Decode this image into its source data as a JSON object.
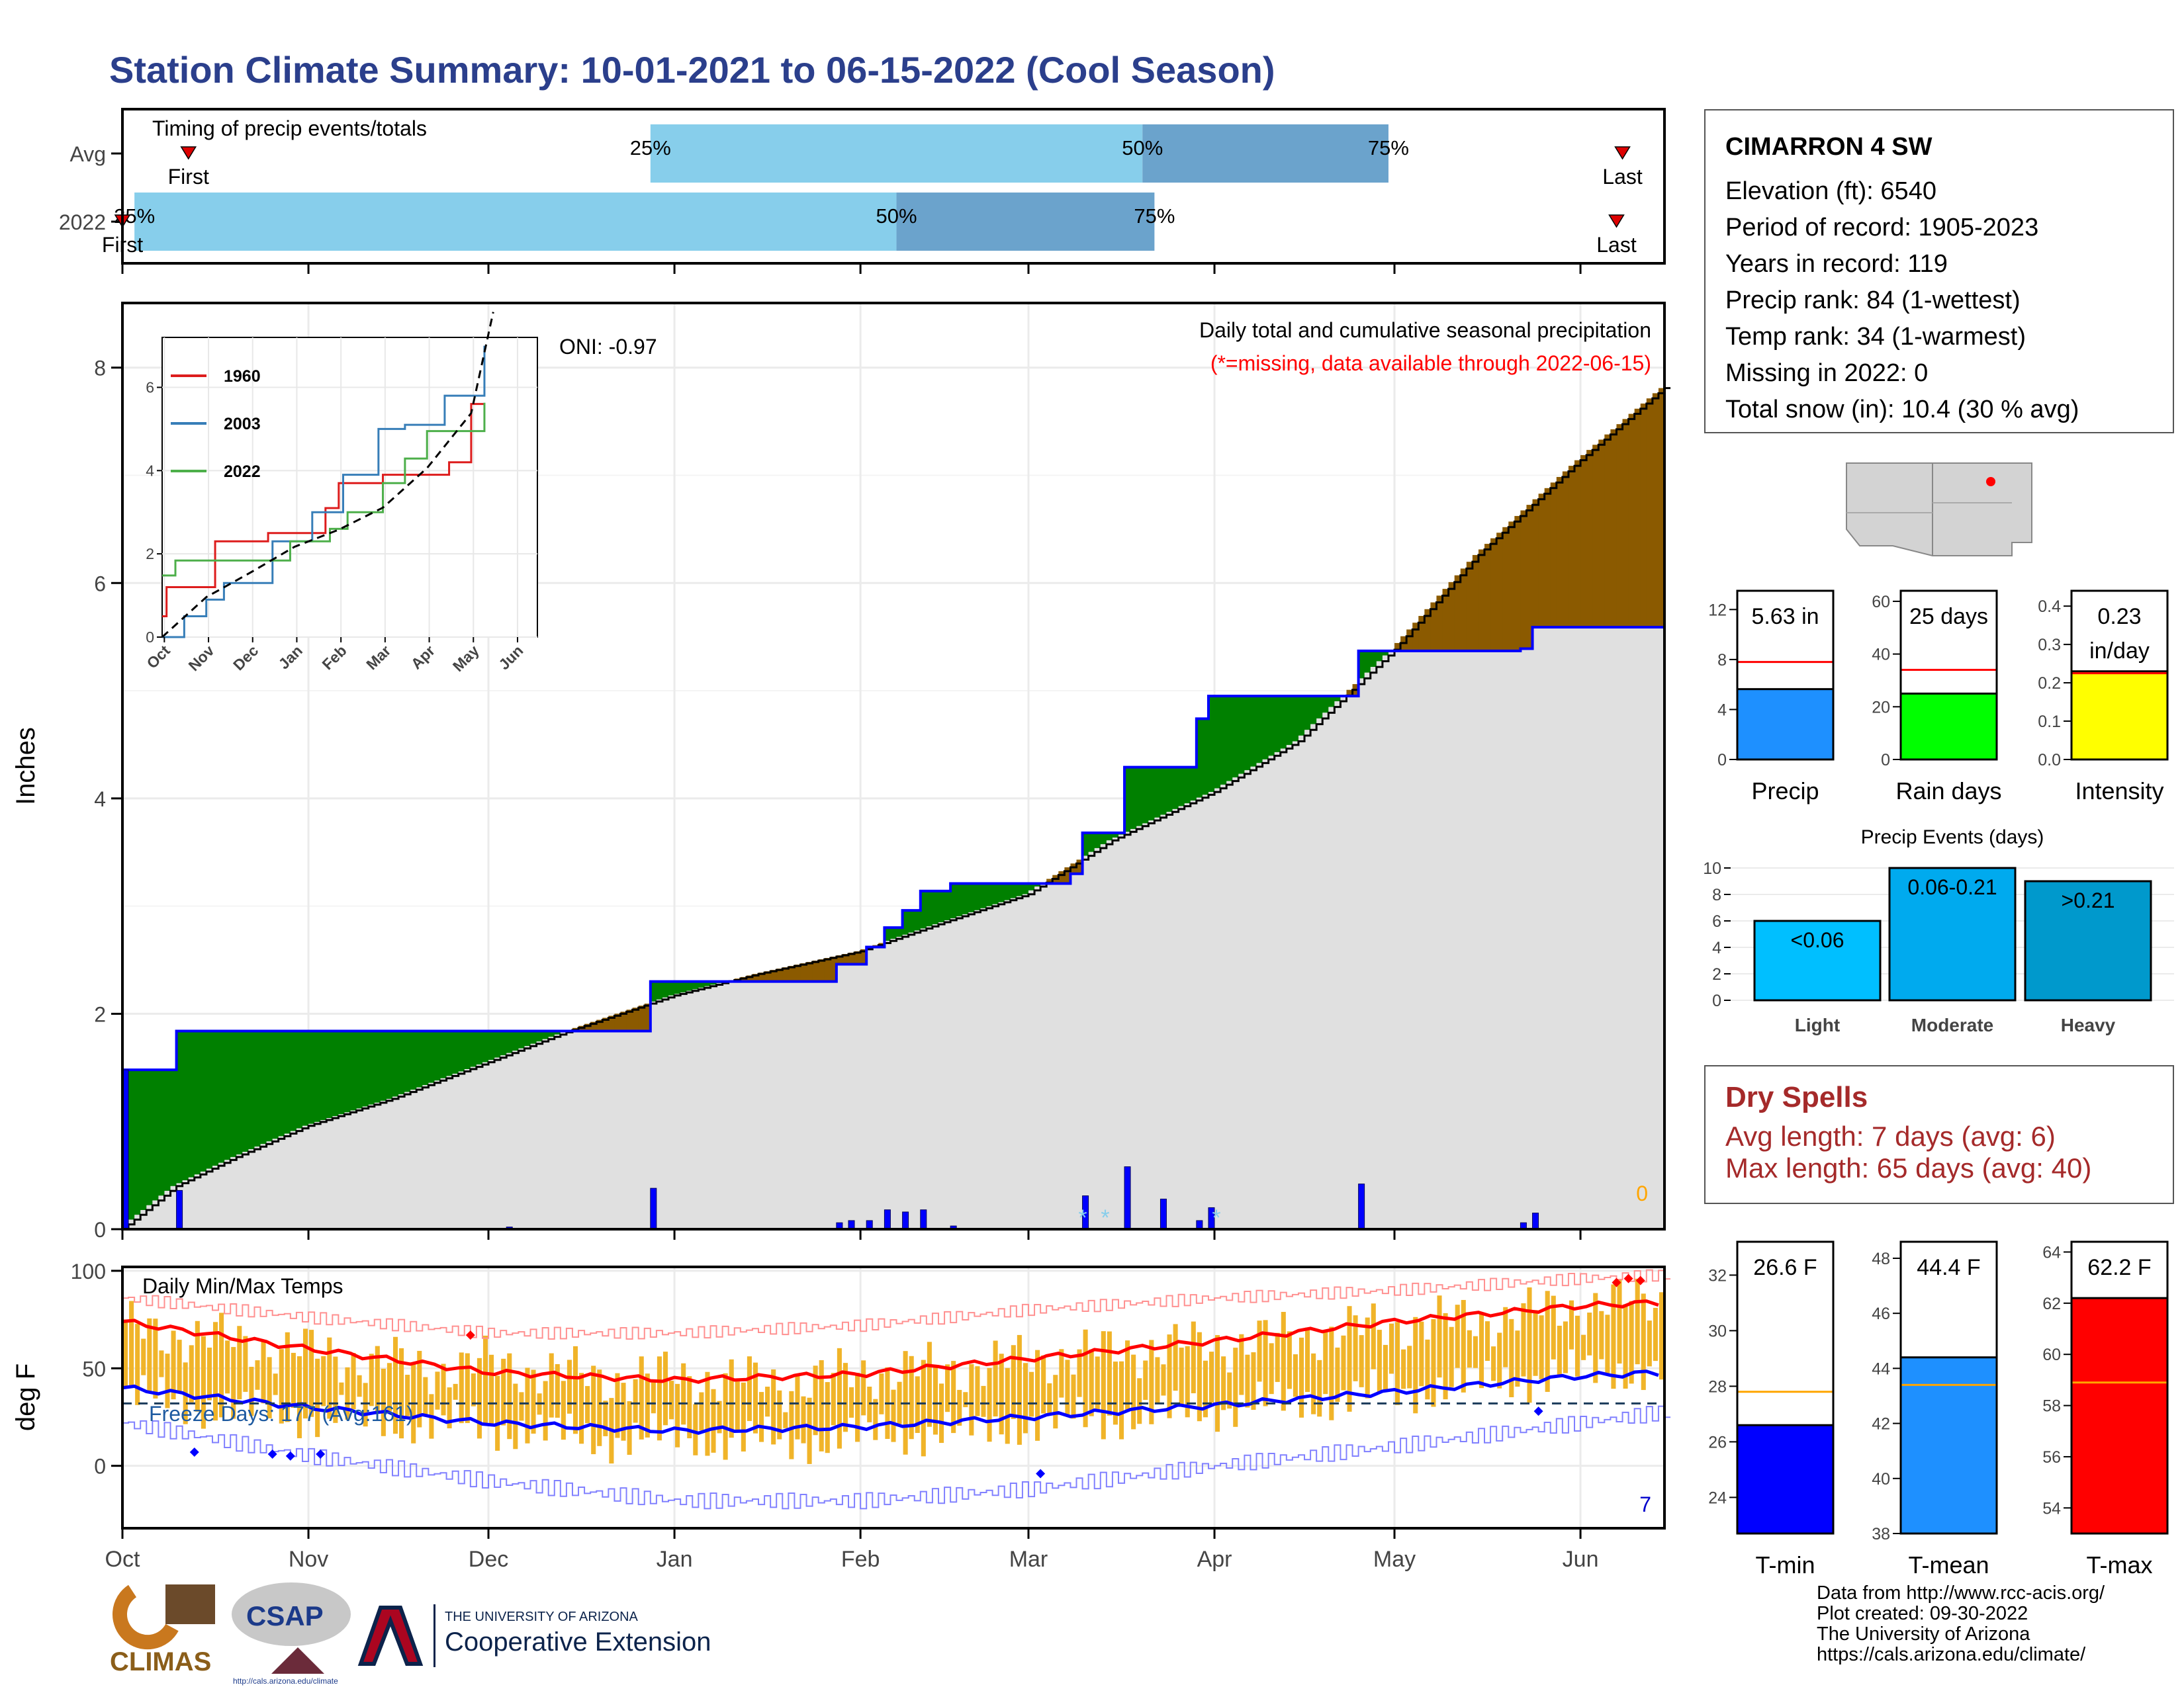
{
  "title": "Station Climate Summary: 10-01-2021 to 06-15-2022 (Cool Season)",
  "station": {
    "name": "CIMARRON 4 SW",
    "lines": [
      "Elevation (ft): 6540",
      "Period of record: 1905-2023",
      "Years in record: 119",
      "Precip rank: 84 (1-wettest)",
      "Temp rank: 34 (1-warmest)",
      "Missing in 2022: 0",
      "Total snow (in): 10.4 (30 % avg)"
    ]
  },
  "colors": {
    "title": "#2b3f8c",
    "above_avg": "#008000",
    "below_avg": "#8b5a00",
    "normal_fill": "#e0e0e0",
    "precip_line": "#0000ff",
    "bars": "#f0b429",
    "tmax": "#ff0000",
    "tmin": "#0000ff",
    "missing_text": "#ff0000",
    "dry_spells": "#a52a2a"
  },
  "chart_data": [
    {
      "id": "timing",
      "type": "bar",
      "title": "Timing of precip events/totals",
      "rows": [
        {
          "label": "Avg",
          "first": "2021-10-12",
          "p25": "2021-12-28",
          "p50": "2022-03-20",
          "p75": "2022-04-30",
          "last": "2022-06-08",
          "first_label": "First",
          "p25_label": "25%",
          "p50_label": "50%",
          "p75_label": "75%",
          "last_label": "Last"
        },
        {
          "label": "2022",
          "first": "2021-10-01",
          "p25": "2021-10-03",
          "p50": "2022-02-07",
          "p75": "2022-03-22",
          "last": "2022-06-07",
          "first_label": "First",
          "p25_label": "25%",
          "p50_label": "50%",
          "p75_label": "75%",
          "last_label": "Last"
        }
      ]
    },
    {
      "id": "precip",
      "type": "area",
      "title": "Daily total and cumulative seasonal precipitation",
      "subtitle": "(*=missing, data available through 2022-06-15)",
      "oni": "ONI: -0.97",
      "ylabel": "Inches",
      "ylim": [
        0,
        8.6
      ],
      "yticks": [
        0,
        2,
        4,
        6,
        8
      ],
      "x_range": [
        "2021-10-01",
        "2022-06-15"
      ],
      "x_ticks": [
        "Oct",
        "Nov",
        "Dec",
        "Jan",
        "Feb",
        "Mar",
        "Apr",
        "May",
        "Jun"
      ],
      "x_tick_dates": [
        "2021-10-01",
        "2021-11-01",
        "2021-12-01",
        "2022-01-01",
        "2022-02-01",
        "2022-03-01",
        "2022-04-01",
        "2022-05-01",
        "2022-06-01"
      ],
      "missing_count": "0",
      "cumulative_2022": [
        [
          "2021-10-01",
          1.48
        ],
        [
          "2021-10-10",
          1.84
        ],
        [
          "2021-12-04",
          1.84
        ],
        [
          "2021-12-28",
          2.3
        ],
        [
          "2022-01-28",
          2.46
        ],
        [
          "2022-02-02",
          2.62
        ],
        [
          "2022-02-05",
          2.8
        ],
        [
          "2022-02-08",
          2.96
        ],
        [
          "2022-02-11",
          3.14
        ],
        [
          "2022-02-16",
          3.21
        ],
        [
          "2022-03-08",
          3.3
        ],
        [
          "2022-03-10",
          3.68
        ],
        [
          "2022-03-17",
          4.29
        ],
        [
          "2022-03-29",
          4.74
        ],
        [
          "2022-03-31",
          4.95
        ],
        [
          "2022-04-25",
          5.37
        ],
        [
          "2022-05-22",
          5.39
        ],
        [
          "2022-05-24",
          5.59
        ],
        [
          "2022-06-15",
          5.63
        ]
      ],
      "cumulative_normal": [
        [
          "2021-10-01",
          0.0
        ],
        [
          "2021-10-10",
          0.4
        ],
        [
          "2021-10-20",
          0.67
        ],
        [
          "2021-11-01",
          0.96
        ],
        [
          "2021-11-15",
          1.21
        ],
        [
          "2021-12-01",
          1.55
        ],
        [
          "2021-12-15",
          1.85
        ],
        [
          "2022-01-01",
          2.17
        ],
        [
          "2022-01-15",
          2.37
        ],
        [
          "2022-02-01",
          2.58
        ],
        [
          "2022-02-15",
          2.85
        ],
        [
          "2022-03-01",
          3.11
        ],
        [
          "2022-03-15",
          3.61
        ],
        [
          "2022-04-01",
          4.06
        ],
        [
          "2022-04-15",
          4.53
        ],
        [
          "2022-05-01",
          5.38
        ],
        [
          "2022-05-15",
          6.26
        ],
        [
          "2022-06-01",
          7.14
        ],
        [
          "2022-06-15",
          7.81
        ]
      ],
      "daily_2022": [
        [
          "2021-10-01",
          1.48
        ],
        [
          "2021-10-10",
          0.36
        ],
        [
          "2021-12-04",
          0.02
        ],
        [
          "2021-12-28",
          0.38
        ],
        [
          "2022-01-28",
          0.06
        ],
        [
          "2022-01-30",
          0.08
        ],
        [
          "2022-02-02",
          0.08
        ],
        [
          "2022-02-05",
          0.18
        ],
        [
          "2022-02-08",
          0.16
        ],
        [
          "2022-02-11",
          0.18
        ],
        [
          "2022-02-16",
          0.03
        ],
        [
          "2022-03-10",
          0.31
        ],
        [
          "2022-03-17",
          0.58
        ],
        [
          "2022-03-23",
          0.28
        ],
        [
          "2022-03-29",
          0.08
        ],
        [
          "2022-03-31",
          0.2
        ],
        [
          "2022-04-25",
          0.42
        ],
        [
          "2022-05-22",
          0.06
        ],
        [
          "2022-05-24",
          0.15
        ]
      ],
      "snow_marks": [
        "*",
        "*",
        "*"
      ]
    },
    {
      "id": "inset",
      "type": "line",
      "ylim": [
        0,
        7.2
      ],
      "yticks": [
        0,
        2,
        4,
        6
      ],
      "x_ticks": [
        "Oct",
        "Nov",
        "Dec",
        "Jan",
        "Feb",
        "Mar",
        "Apr",
        "May",
        "Jun"
      ],
      "series": [
        {
          "name": "1960",
          "color": "#dd1c1c",
          "values": [
            [
              0,
              0.5
            ],
            [
              0.1,
              1.2
            ],
            [
              1.2,
              2.3
            ],
            [
              2.4,
              2.5
            ],
            [
              3.7,
              3.1
            ],
            [
              4.0,
              3.7
            ],
            [
              5.0,
              3.9
            ],
            [
              6.5,
              4.2
            ],
            [
              7.0,
              5.6
            ],
            [
              7.3,
              5.6
            ]
          ]
        },
        {
          "name": "2003",
          "color": "#377eb8",
          "values": [
            [
              0,
              0
            ],
            [
              0.5,
              0.5
            ],
            [
              1.0,
              0.9
            ],
            [
              1.4,
              1.3
            ],
            [
              2.5,
              2.3
            ],
            [
              3.4,
              3.0
            ],
            [
              4.1,
              3.9
            ],
            [
              4.9,
              5.0
            ],
            [
              5.5,
              5.1
            ],
            [
              6.4,
              5.8
            ],
            [
              7.3,
              7.0
            ]
          ]
        },
        {
          "name": "2022",
          "color": "#4daf4a",
          "values": [
            [
              0,
              1.48
            ],
            [
              0.3,
              1.84
            ],
            [
              2.1,
              1.84
            ],
            [
              2.9,
              2.3
            ],
            [
              3.8,
              2.6
            ],
            [
              4.2,
              3.0
            ],
            [
              5.0,
              3.7
            ],
            [
              5.5,
              4.29
            ],
            [
              6.0,
              4.95
            ],
            [
              7.3,
              5.63
            ]
          ]
        },
        {
          "name": "avg",
          "color": "#000000",
          "values": [
            [
              0,
              0
            ],
            [
              1.0,
              0.96
            ],
            [
              2.0,
              1.55
            ],
            [
              3.0,
              2.17
            ],
            [
              4.0,
              2.58
            ],
            [
              5.0,
              3.11
            ],
            [
              6.0,
              4.06
            ],
            [
              7.0,
              5.38
            ],
            [
              7.5,
              7.81
            ]
          ]
        }
      ]
    },
    {
      "id": "total_bars",
      "type": "bar",
      "panels": [
        {
          "name": "Precip",
          "value": 5.63,
          "label": "5.63 in",
          "label2": "",
          "avg": 7.8,
          "ylim": [
            0,
            13.5
          ],
          "yticks": [
            0,
            4,
            8,
            12
          ],
          "color": "#1e90ff"
        },
        {
          "name": "Rain days",
          "value": 25,
          "label": "25 days",
          "label2": "",
          "avg": 34,
          "ylim": [
            0,
            64
          ],
          "yticks": [
            0,
            20,
            40,
            60
          ],
          "color": "#00ff00"
        },
        {
          "name": "Intensity",
          "value": 0.23,
          "label": "0.23",
          "label2": "in/day",
          "avg": 0.225,
          "ylim": [
            0,
            0.44
          ],
          "yticks": [
            "0.0",
            "0.1",
            "0.2",
            "0.3",
            "0.4"
          ],
          "color": "#ffff00"
        }
      ]
    },
    {
      "id": "events",
      "type": "bar",
      "title": "Precip Events (days)",
      "categories": [
        "Light",
        "Moderate",
        "Heavy"
      ],
      "values": [
        6,
        10,
        9
      ],
      "labels": [
        "<0.06",
        "0.06-0.21",
        ">0.21"
      ],
      "colors": [
        "#00bfff",
        "#00aaee",
        "#0099cc"
      ],
      "ylim": [
        0,
        10.3
      ],
      "yticks": [
        0,
        2,
        4,
        6,
        8,
        10
      ]
    },
    {
      "id": "temps",
      "type": "bar",
      "title": "Daily Min/Max Temps",
      "ylabel": "deg F",
      "ylim": [
        -32,
        102
      ],
      "yticks": [
        0,
        50,
        100
      ],
      "freeze_label": "Freeze Days: 177 (Avg:161)",
      "freeze_line": 32,
      "missing_count": "7",
      "normal_max": [
        [
          0,
          74
        ],
        [
          31,
          60
        ],
        [
          61,
          48
        ],
        [
          92,
          44
        ],
        [
          123,
          47
        ],
        [
          151,
          55
        ],
        [
          182,
          64
        ],
        [
          212,
          74
        ],
        [
          243,
          82
        ],
        [
          258,
          84
        ]
      ],
      "normal_min": [
        [
          0,
          40
        ],
        [
          31,
          30
        ],
        [
          61,
          22
        ],
        [
          92,
          18
        ],
        [
          123,
          20
        ],
        [
          151,
          25
        ],
        [
          182,
          31
        ],
        [
          212,
          38
        ],
        [
          243,
          46
        ],
        [
          258,
          48
        ]
      ],
      "record_max": [
        [
          0,
          86
        ],
        [
          31,
          76
        ],
        [
          61,
          68
        ],
        [
          92,
          68
        ],
        [
          123,
          72
        ],
        [
          151,
          80
        ],
        [
          182,
          86
        ],
        [
          212,
          90
        ],
        [
          243,
          96
        ],
        [
          258,
          98
        ]
      ],
      "record_min": [
        [
          0,
          22
        ],
        [
          31,
          5
        ],
        [
          61,
          -8
        ],
        [
          92,
          -18
        ],
        [
          123,
          -18
        ],
        [
          151,
          -12
        ],
        [
          182,
          0
        ],
        [
          212,
          10
        ],
        [
          243,
          22
        ],
        [
          258,
          28
        ]
      ],
      "daily_max_avg": [
        [
          0,
          70
        ],
        [
          15,
          65
        ],
        [
          31,
          58
        ],
        [
          50,
          50
        ],
        [
          61,
          52
        ],
        [
          80,
          45
        ],
        [
          92,
          46
        ],
        [
          110,
          42
        ],
        [
          123,
          48
        ],
        [
          140,
          50
        ],
        [
          151,
          55
        ],
        [
          170,
          60
        ],
        [
          182,
          62
        ],
        [
          200,
          68
        ],
        [
          212,
          72
        ],
        [
          230,
          76
        ],
        [
          243,
          82
        ],
        [
          258,
          86
        ]
      ],
      "daily_min_avg": [
        [
          0,
          36
        ],
        [
          15,
          30
        ],
        [
          31,
          26
        ],
        [
          50,
          22
        ],
        [
          61,
          20
        ],
        [
          80,
          14
        ],
        [
          92,
          15
        ],
        [
          110,
          12
        ],
        [
          123,
          16
        ],
        [
          140,
          18
        ],
        [
          151,
          22
        ],
        [
          170,
          26
        ],
        [
          182,
          30
        ],
        [
          200,
          34
        ],
        [
          212,
          38
        ],
        [
          230,
          44
        ],
        [
          243,
          48
        ],
        [
          258,
          50
        ]
      ]
    },
    {
      "id": "temp_bars",
      "type": "bar",
      "panels": [
        {
          "name": "T-min",
          "value": 26.6,
          "label": "26.6 F",
          "avg": 27.8,
          "ylim": [
            22.7,
            33.2
          ],
          "yticks": [
            24,
            26,
            28,
            30,
            32
          ],
          "color": "#0000ff"
        },
        {
          "name": "T-mean",
          "value": 44.4,
          "label": "44.4 F",
          "avg": 43.4,
          "ylim": [
            38,
            48.6
          ],
          "yticks": [
            38,
            40,
            42,
            44,
            46,
            48
          ],
          "color": "#1e90ff"
        },
        {
          "name": "T-max",
          "value": 62.2,
          "label": "62.2 F",
          "avg": 58.9,
          "ylim": [
            53,
            64.4
          ],
          "yticks": [
            54,
            56,
            58,
            60,
            62,
            64
          ],
          "color": "#ff0000"
        }
      ]
    }
  ],
  "map": {
    "label": "station-location-map"
  },
  "dry_spells": {
    "title": "Dry Spells",
    "avg_line": "Avg length: 7 days (avg: 6)",
    "max_line": "Max length: 65 days (avg: 40)"
  },
  "credits": {
    "lines": [
      "Data from http://www.rcc-acis.org/",
      "Plot created: 09-30-2022",
      "The University of Arizona",
      "https://cals.arizona.edu/climate/"
    ]
  },
  "logos": {
    "climas": "CLIMAS",
    "csap": "CSAP",
    "csap_url": "http://cals.arizona.edu/climate",
    "ua_small": "THE UNIVERSITY OF ARIZONA",
    "ua_big": "Cooperative Extension"
  }
}
